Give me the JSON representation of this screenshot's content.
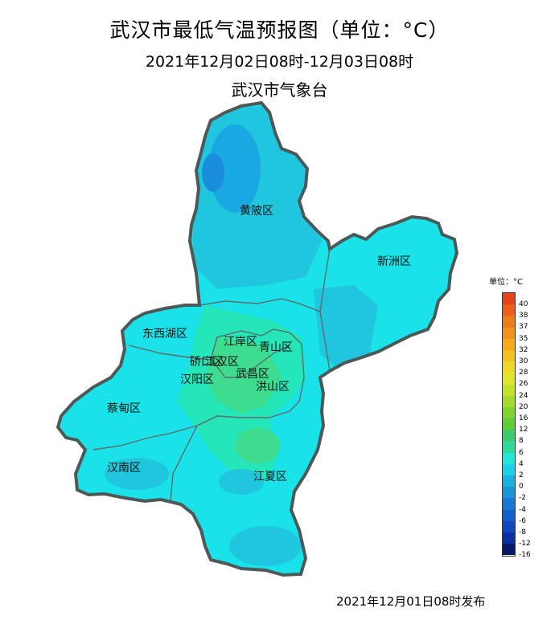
{
  "header": {
    "title": "武汉市最低气温预报图（单位：°C）",
    "period": "2021年12月02日08时-12月03日08时",
    "agency": "武汉市气象台"
  },
  "map": {
    "districts": [
      {
        "name": "黄陂区"
      },
      {
        "name": "新洲区"
      },
      {
        "name": "东西湖区"
      },
      {
        "name": "江岸区"
      },
      {
        "name": "青山区"
      },
      {
        "name": "硚口区"
      },
      {
        "name": "江汉区"
      },
      {
        "name": "汉阳区"
      },
      {
        "name": "武昌区"
      },
      {
        "name": "洪山区"
      },
      {
        "name": "蔡甸区"
      },
      {
        "name": "汉南区"
      },
      {
        "name": "江夏区"
      }
    ],
    "colors": {
      "outline": "#555f5f",
      "cyan_4_to_2": "#19e3e8",
      "cyan_2_to_0": "#1fc6de",
      "blue_0_to_-2": "#1a9ae0",
      "green_6_to_8": "#3ddc8f",
      "green_4_to_6": "#24e6b8"
    }
  },
  "legend": {
    "title": "单位：°C",
    "ticks": [
      "40",
      "38",
      "37",
      "35",
      "32",
      "30",
      "28",
      "26",
      "24",
      "20",
      "16",
      "12",
      "8",
      "6",
      "4",
      "2",
      "0",
      "-2",
      "-4",
      "-6",
      "-8",
      "-12",
      "-16"
    ],
    "colors": [
      "#e8441b",
      "#ec5e1a",
      "#ef7a19",
      "#f2931b",
      "#f4ab1c",
      "#f4c21e",
      "#efd727",
      "#e1e42a",
      "#c4e22a",
      "#a3dc2b",
      "#7fd42f",
      "#5fcc38",
      "#3ecc6a",
      "#2fd99a",
      "#22e8d8",
      "#1cd2e6",
      "#1ab3e0",
      "#1896da",
      "#1679d4",
      "#1460cc",
      "#1148bf",
      "#0c2ea3",
      "#081766"
    ]
  },
  "footer": {
    "issued": "2021年12月01日08时发布"
  }
}
